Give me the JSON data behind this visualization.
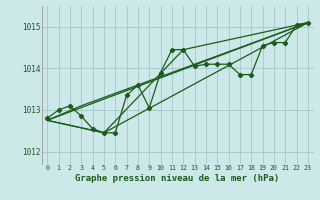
{
  "background_color": "#cce8e8",
  "grid_color": "#aacccc",
  "line_color": "#1a5c1a",
  "xlabel": "Graphe pression niveau de la mer (hPa)",
  "xlabel_fontsize": 6.5,
  "ylim": [
    1011.7,
    1015.5
  ],
  "xlim": [
    -0.5,
    23.5
  ],
  "yticks": [
    1012,
    1013,
    1014,
    1015
  ],
  "xticks": [
    0,
    1,
    2,
    3,
    4,
    5,
    6,
    7,
    8,
    9,
    10,
    11,
    12,
    13,
    14,
    15,
    16,
    17,
    18,
    19,
    20,
    21,
    22,
    23
  ],
  "series1_x": [
    0,
    1,
    2,
    3,
    4,
    5,
    6,
    7,
    8,
    9,
    10,
    11,
    12,
    13,
    14,
    15,
    16,
    17,
    18,
    19,
    20,
    21,
    22,
    23
  ],
  "series1_y": [
    1012.8,
    1013.0,
    1013.1,
    1012.85,
    1012.55,
    1012.45,
    1012.45,
    1013.35,
    1013.6,
    1013.05,
    1013.9,
    1014.45,
    1014.45,
    1014.05,
    1014.1,
    1014.1,
    1014.1,
    1013.85,
    1013.85,
    1014.55,
    1014.62,
    1014.62,
    1015.05,
    1015.1
  ],
  "series2_x": [
    0,
    23
  ],
  "series2_y": [
    1012.75,
    1015.1
  ],
  "series3_x": [
    0,
    5,
    23
  ],
  "series3_y": [
    1012.75,
    1012.45,
    1015.1
  ],
  "series4_x": [
    0,
    5,
    12,
    23
  ],
  "series4_y": [
    1012.75,
    1012.45,
    1014.45,
    1015.1
  ],
  "series5_x": [
    0,
    3,
    23
  ],
  "series5_y": [
    1012.75,
    1013.1,
    1015.1
  ]
}
